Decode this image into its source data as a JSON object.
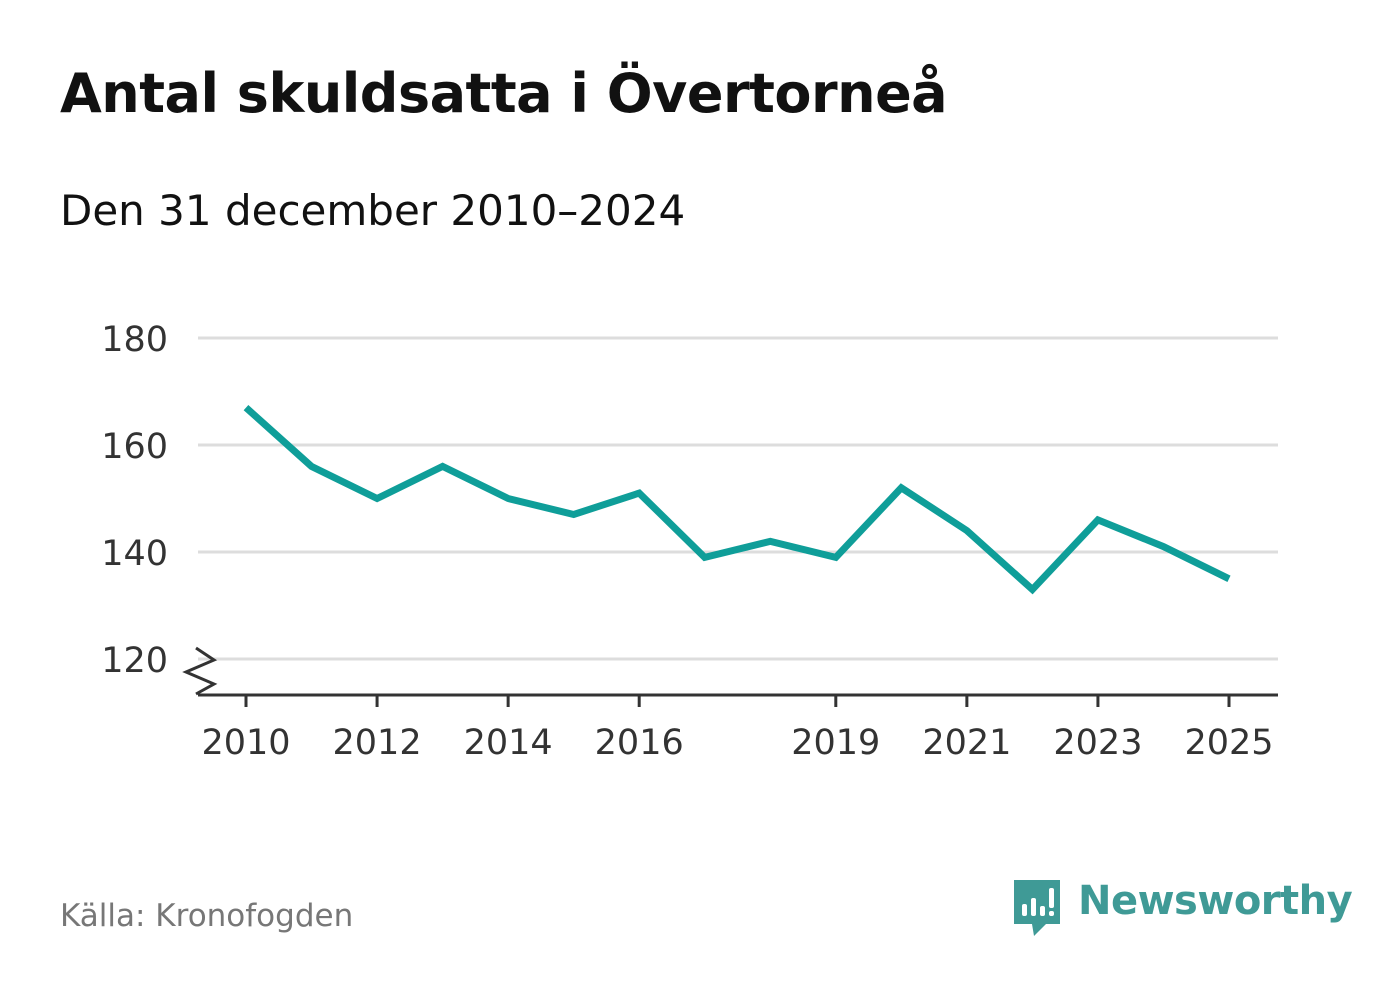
{
  "title": "Antal skuldsatta i Övertorneå",
  "subtitle": "Den 31 december 2010–2024",
  "source": "Källa: Kronofogden",
  "brand": {
    "name": "Newsworthy",
    "icon": "newsworthy-logo-icon"
  },
  "colors": {
    "line": "#0f9e99",
    "grid": "#dddddd",
    "axis": "#333333",
    "brand": "#3f9a96"
  },
  "chart_data": {
    "type": "line",
    "title": "Antal skuldsatta i Övertorneå",
    "xlabel": "",
    "ylabel": "",
    "x": [
      2010,
      2011,
      2012,
      2013,
      2014,
      2015,
      2016,
      2017,
      2018,
      2019,
      2020,
      2021,
      2022,
      2023,
      2024,
      2025
    ],
    "series": [
      {
        "name": "Antal skuldsatta",
        "values": [
          167,
          156,
          150,
          156,
          150,
          147,
          151,
          139,
          142,
          139,
          152,
          144,
          133,
          146,
          141,
          135
        ]
      }
    ],
    "xticks": [
      2010,
      2012,
      2014,
      2016,
      2019,
      2021,
      2023,
      2025
    ],
    "yticks": [
      120,
      140,
      160,
      180
    ],
    "ylim": [
      120,
      180
    ],
    "xlim": [
      2010,
      2025
    ],
    "grid": true,
    "axis_break": true
  }
}
